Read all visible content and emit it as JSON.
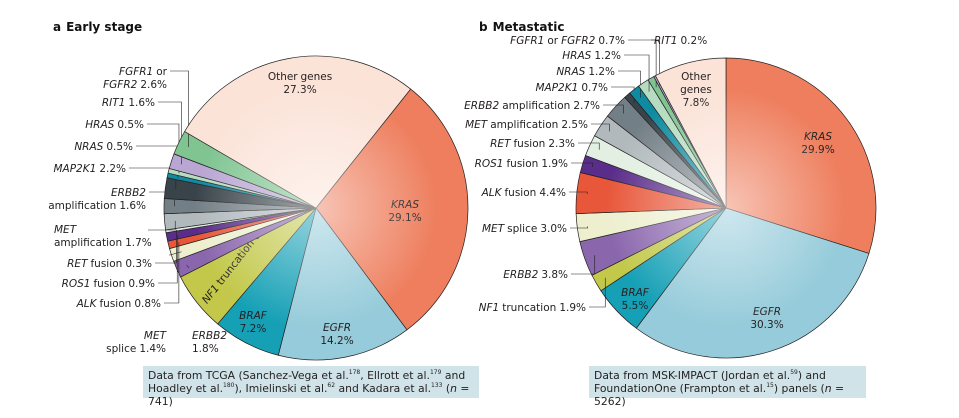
{
  "chart_data": [
    {
      "type": "pie",
      "panel": "a",
      "title": "Early stage",
      "slices": [
        {
          "name": "KRAS",
          "value": 29.1,
          "label": "29.1%",
          "color": "#ee7e5d"
        },
        {
          "name": "EGFR",
          "value": 14.2,
          "label": "14.2%",
          "color": "#95cbda"
        },
        {
          "name": "BRAF",
          "value": 7.2,
          "label": "7.2%",
          "color": "#16a0b6"
        },
        {
          "name": "NF1 truncation",
          "value": 6.3,
          "label": "6.3%",
          "color": "#c3c84a"
        },
        {
          "name": "ERBB2",
          "value": 1.8,
          "label": "1.8%",
          "color": "#8a66ad"
        },
        {
          "name": "MET splice",
          "value": 1.4,
          "label": "1.4%",
          "color": "#edefcf"
        },
        {
          "name": "ALK fusion",
          "value": 0.8,
          "label": "0.8%",
          "color": "#e8573a"
        },
        {
          "name": "ROS1 fusion",
          "value": 0.9,
          "label": "0.9%",
          "color": "#5a2d8a"
        },
        {
          "name": "RET fusion",
          "value": 0.3,
          "label": "0.3%",
          "color": "#e2efe2"
        },
        {
          "name": "MET amplification",
          "value": 1.7,
          "label": "1.7%",
          "color": "#b1b9bd"
        },
        {
          "name": "ERBB2 amplification",
          "value": 1.6,
          "label": "1.6%",
          "color": "#737f86"
        },
        {
          "name": "MAP2K1",
          "value": 2.2,
          "label": "2.2%",
          "color": "#39444a"
        },
        {
          "name": "NRAS",
          "value": 0.5,
          "label": "0.5%",
          "color": "#0f8aa0"
        },
        {
          "name": "HRAS",
          "value": 0.5,
          "label": "0.5%",
          "color": "#b5dcc0"
        },
        {
          "name": "RIT1",
          "value": 1.6,
          "label": "1.6%",
          "color": "#b9a6d3"
        },
        {
          "name": "FGFR1 or FGFR2",
          "value": 2.6,
          "label": "2.6%",
          "color": "#7fc491"
        },
        {
          "name": "Other genes",
          "value": 27.3,
          "label": "27.3%",
          "color": "#fbe3d8"
        }
      ],
      "footnote": [
        {
          "t": "Data from TCGA (Sanchez-Vega et al."
        },
        {
          "t": "178",
          "sup": true
        },
        {
          "t": ", Ellrott et al."
        },
        {
          "t": "179",
          "sup": true
        },
        {
          "t": " and"
        },
        {
          "br": true
        },
        {
          "t": "Hoadley et al."
        },
        {
          "t": "180",
          "sup": true
        },
        {
          "t": "), Imielinski et al."
        },
        {
          "t": "62",
          "sup": true
        },
        {
          "t": " and Kadara et al."
        },
        {
          "t": "133",
          "sup": true
        },
        {
          "t": " ("
        },
        {
          "t": "n",
          "i": true
        },
        {
          "t": " = 741)"
        }
      ]
    },
    {
      "type": "pie",
      "panel": "b",
      "title": "Metastatic",
      "slices": [
        {
          "name": "KRAS",
          "value": 29.9,
          "label": "29.9%",
          "color": "#ee7e5d"
        },
        {
          "name": "EGFR",
          "value": 30.3,
          "label": "30.3%",
          "color": "#95cbda"
        },
        {
          "name": "BRAF",
          "value": 5.5,
          "label": "5.5%",
          "color": "#16a0b6"
        },
        {
          "name": "NF1 truncation",
          "value": 1.9,
          "label": "1.9%",
          "color": "#c3c84a"
        },
        {
          "name": "ERBB2",
          "value": 3.8,
          "label": "3.8%",
          "color": "#8a66ad"
        },
        {
          "name": "MET splice",
          "value": 3.0,
          "label": "3.0%",
          "color": "#edefcf"
        },
        {
          "name": "ALK fusion",
          "value": 4.4,
          "label": "4.4%",
          "color": "#e8573a"
        },
        {
          "name": "ROS1 fusion",
          "value": 1.9,
          "label": "1.9%",
          "color": "#5a2d8a"
        },
        {
          "name": "RET fusion",
          "value": 2.3,
          "label": "2.3%",
          "color": "#e2efe2"
        },
        {
          "name": "MET amplification",
          "value": 2.5,
          "label": "2.5%",
          "color": "#b1b9bd"
        },
        {
          "name": "ERBB2 amplification",
          "value": 2.7,
          "label": "2.7%",
          "color": "#737f86"
        },
        {
          "name": "MAP2K1",
          "value": 0.7,
          "label": "0.7%",
          "color": "#39444a"
        },
        {
          "name": "NRAS",
          "value": 1.2,
          "label": "1.2%",
          "color": "#0f8aa0"
        },
        {
          "name": "HRAS",
          "value": 1.2,
          "label": "1.2%",
          "color": "#b5dcc0"
        },
        {
          "name": "FGFR1 or FGFR2",
          "value": 0.7,
          "label": "0.7%",
          "color": "#7fc491"
        },
        {
          "name": "RIT1",
          "value": 0.2,
          "label": "0.2%",
          "color": "#b9a6d3"
        },
        {
          "name": "Other genes",
          "value": 7.8,
          "label": "7.8%",
          "color": "#fbe3d8"
        }
      ],
      "footnote": [
        {
          "t": "Data from MSK-IMPACT (Jordan et al."
        },
        {
          "t": "59",
          "sup": true
        },
        {
          "t": ") and"
        },
        {
          "br": true
        },
        {
          "t": "FoundationOne (Frampton et al."
        },
        {
          "t": "15",
          "sup": true
        },
        {
          "t": ") panels ("
        },
        {
          "t": "n",
          "i": true
        },
        {
          "t": " = 5262)"
        }
      ]
    }
  ]
}
